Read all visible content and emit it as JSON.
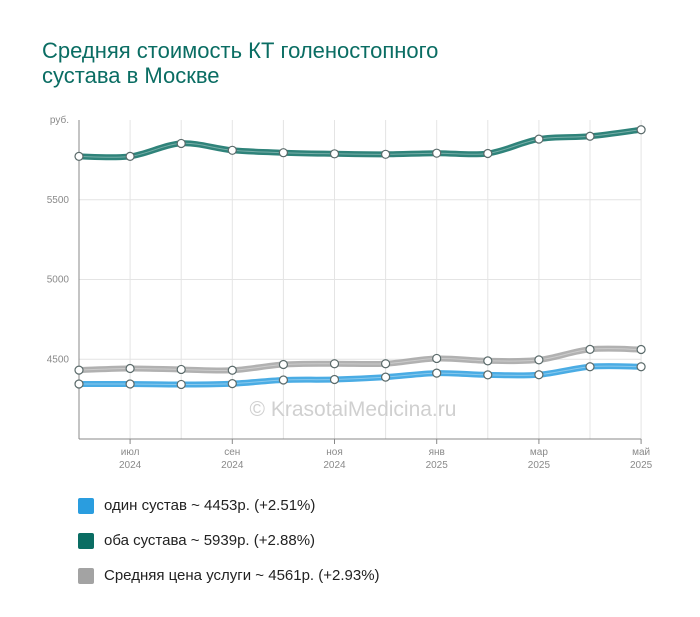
{
  "chart_data": {
    "type": "line",
    "title": [
      "Средняя стоимость КТ голеностопного",
      "сустава в Москве"
    ],
    "y_unit_label": "руб.",
    "ylim": [
      4000,
      6000
    ],
    "y_ticks": [
      4500,
      5000,
      5500
    ],
    "x_ticks": [
      {
        "month": "июл",
        "year": "2024",
        "index": 1
      },
      {
        "month": "сен",
        "year": "2024",
        "index": 3
      },
      {
        "month": "ноя",
        "year": "2024",
        "index": 5
      },
      {
        "month": "янв",
        "year": "2025",
        "index": 7
      },
      {
        "month": "мар",
        "year": "2025",
        "index": 9
      },
      {
        "month": "май",
        "year": "2025",
        "index": 11
      }
    ],
    "categories": [
      "2024-06",
      "2024-07",
      "2024-08",
      "2024-09",
      "2024-10",
      "2024-11",
      "2024-12",
      "2025-01",
      "2025-02",
      "2025-03",
      "2025-04",
      "2025-05"
    ],
    "grid": true,
    "watermark": "© KrasotaiMedicina.ru",
    "series": [
      {
        "name": "один сустав",
        "legend": "один сустав ~ 4453р. (+2.51%)",
        "color": "#2a9ddf",
        "values": [
          4345,
          4345,
          4342,
          4347,
          4370,
          4373,
          4388,
          4413,
          4402,
          4403,
          4453,
          4453
        ]
      },
      {
        "name": "оба сустава",
        "legend": "оба сустава ~ 5939р. (+2.88%)",
        "color": "#0a6d63",
        "values": [
          5772,
          5772,
          5853,
          5810,
          5795,
          5788,
          5785,
          5792,
          5790,
          5880,
          5898,
          5939
        ]
      },
      {
        "name": "Средняя цена услуги",
        "legend": "Средняя цена услуги ~ 4561р. (+2.93%)",
        "color": "#a3a3a3",
        "values": [
          4432,
          4442,
          4436,
          4431,
          4467,
          4472,
          4472,
          4505,
          4490,
          4496,
          4562,
          4561
        ]
      }
    ]
  }
}
